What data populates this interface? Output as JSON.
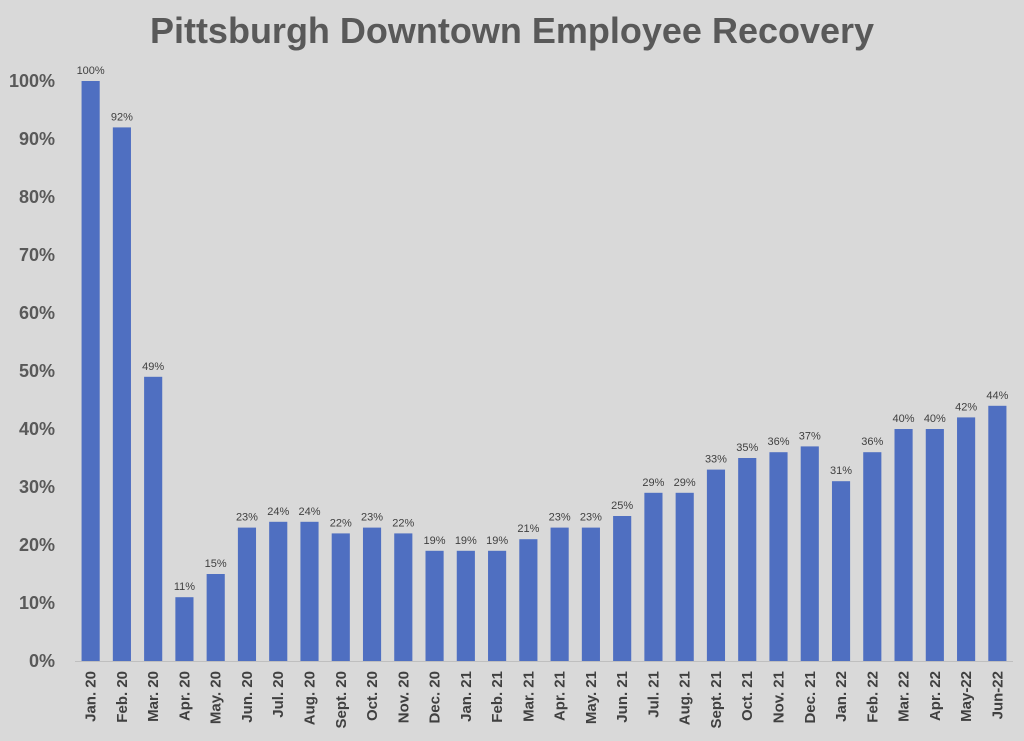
{
  "chart_data": {
    "type": "bar",
    "title": "Pittsburgh Downtown Employee Recovery",
    "categories": [
      "Jan. 20",
      "Feb. 20",
      "Mar. 20",
      "Apr. 20",
      "May. 20",
      "Jun. 20",
      "Jul. 20",
      "Aug. 20",
      "Sept. 20",
      "Oct. 20",
      "Nov. 20",
      "Dec. 20",
      "Jan. 21",
      "Feb. 21",
      "Mar. 21",
      "Apr. 21",
      "May. 21",
      "Jun. 21",
      "Jul. 21",
      "Aug. 21",
      "Sept. 21",
      "Oct. 21",
      "Nov. 21",
      "Dec. 21",
      "Jan. 22",
      "Feb. 22",
      "Mar. 22",
      "Apr. 22",
      "May-22",
      "Jun-22"
    ],
    "values": [
      100,
      92,
      49,
      11,
      15,
      23,
      24,
      24,
      22,
      23,
      22,
      19,
      19,
      19,
      21,
      23,
      23,
      25,
      29,
      29,
      33,
      35,
      36,
      37,
      31,
      36,
      40,
      40,
      42,
      44
    ],
    "data_labels": [
      "100%",
      "92%",
      "49%",
      "11%",
      "15%",
      "23%",
      "24%",
      "24%",
      "22%",
      "23%",
      "22%",
      "19%",
      "19%",
      "19%",
      "21%",
      "23%",
      "23%",
      "25%",
      "29%",
      "29%",
      "33%",
      "35%",
      "36%",
      "37%",
      "31%",
      "36%",
      "40%",
      "40%",
      "42%",
      "44%"
    ],
    "yticks": [
      0,
      10,
      20,
      30,
      40,
      50,
      60,
      70,
      80,
      90,
      100
    ],
    "ytick_labels": [
      "0%",
      "10%",
      "20%",
      "30%",
      "40%",
      "50%",
      "60%",
      "70%",
      "80%",
      "90%",
      "100%"
    ],
    "ylim": [
      0,
      100
    ],
    "xlabel": "",
    "ylabel": "",
    "grid": false,
    "legend": "none",
    "bar_color": "#4f6fc1",
    "background": "#d9d9d9"
  }
}
